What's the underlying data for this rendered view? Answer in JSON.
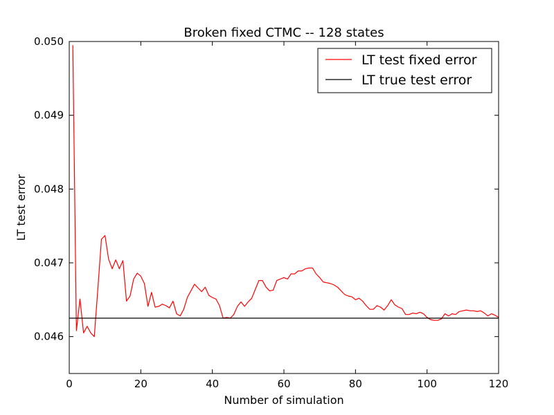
{
  "chart_data": {
    "type": "line",
    "title": "Broken fixed CTMC -- 128 states",
    "xlabel": "Number of simulation",
    "ylabel": "LT test error",
    "xlim": [
      0,
      120
    ],
    "ylim": [
      0.0455,
      0.05
    ],
    "xticks": [
      0,
      20,
      40,
      60,
      80,
      100,
      120
    ],
    "xtick_labels": [
      "0",
      "20",
      "40",
      "60",
      "80",
      "100",
      "120"
    ],
    "yticks": [
      0.046,
      0.047,
      0.048,
      0.049,
      0.05
    ],
    "ytick_labels": [
      "0.046",
      "0.047",
      "0.048",
      "0.049",
      "0.050"
    ],
    "grid": false,
    "legend_position": "top-right",
    "colors": {
      "fixed": "#ff0000",
      "true": "#000000"
    },
    "series": [
      {
        "name": "LT test fixed error",
        "color": "#ff0000",
        "x": [
          1,
          2,
          3,
          4,
          5,
          6,
          7,
          8,
          9,
          10,
          11,
          12,
          13,
          14,
          15,
          16,
          17,
          18,
          19,
          20,
          21,
          22,
          23,
          24,
          25,
          26,
          27,
          28,
          29,
          30,
          31,
          32,
          33,
          34,
          35,
          36,
          37,
          38,
          39,
          40,
          41,
          42,
          43,
          44,
          45,
          46,
          47,
          48,
          49,
          50,
          51,
          52,
          53,
          54,
          55,
          56,
          57,
          58,
          59,
          60,
          61,
          62,
          63,
          64,
          65,
          66,
          67,
          68,
          69,
          70,
          71,
          72,
          73,
          74,
          75,
          76,
          77,
          78,
          79,
          80,
          81,
          82,
          83,
          84,
          85,
          86,
          87,
          88,
          89,
          90,
          91,
          92,
          93,
          94,
          95,
          96,
          97,
          98,
          99,
          100,
          101,
          102,
          103,
          104,
          105,
          106,
          107,
          108,
          109,
          110,
          111,
          112,
          113,
          114,
          115,
          116,
          117,
          118,
          119,
          120
        ],
        "y": [
          0.04995,
          0.04608,
          0.04651,
          0.04605,
          0.04614,
          0.04605,
          0.046,
          0.04665,
          0.04732,
          0.04737,
          0.04705,
          0.04692,
          0.04704,
          0.04692,
          0.04703,
          0.04648,
          0.04655,
          0.04678,
          0.04686,
          0.04682,
          0.04672,
          0.04641,
          0.0466,
          0.0464,
          0.04641,
          0.04644,
          0.04642,
          0.04639,
          0.04648,
          0.04631,
          0.04628,
          0.04637,
          0.04653,
          0.04662,
          0.04671,
          0.04666,
          0.04661,
          0.04667,
          0.04656,
          0.04653,
          0.04651,
          0.04642,
          0.04625,
          0.04626,
          0.04625,
          0.0463,
          0.04641,
          0.04647,
          0.04641,
          0.04647,
          0.04652,
          0.04664,
          0.04676,
          0.04676,
          0.04667,
          0.04662,
          0.04663,
          0.04676,
          0.04678,
          0.0468,
          0.04678,
          0.04685,
          0.04685,
          0.04689,
          0.04689,
          0.04692,
          0.04693,
          0.04693,
          0.04685,
          0.0468,
          0.04674,
          0.04673,
          0.04672,
          0.0467,
          0.04667,
          0.04662,
          0.04657,
          0.04655,
          0.04654,
          0.0465,
          0.04652,
          0.04648,
          0.04642,
          0.04637,
          0.04637,
          0.04642,
          0.0464,
          0.04636,
          0.04642,
          0.0465,
          0.04643,
          0.0464,
          0.04638,
          0.0463,
          0.0463,
          0.04632,
          0.04631,
          0.04633,
          0.04631,
          0.04626,
          0.04623,
          0.04622,
          0.04622,
          0.04624,
          0.04631,
          0.04628,
          0.04631,
          0.0463,
          0.04634,
          0.04635,
          0.04636,
          0.04635,
          0.04635,
          0.04634,
          0.04635,
          0.04632,
          0.04628,
          0.04631,
          0.04629,
          0.04626
        ]
      },
      {
        "name": "LT true test error",
        "color": "#000000",
        "x": [
          0,
          120
        ],
        "y": [
          0.04625,
          0.04625
        ]
      }
    ]
  }
}
